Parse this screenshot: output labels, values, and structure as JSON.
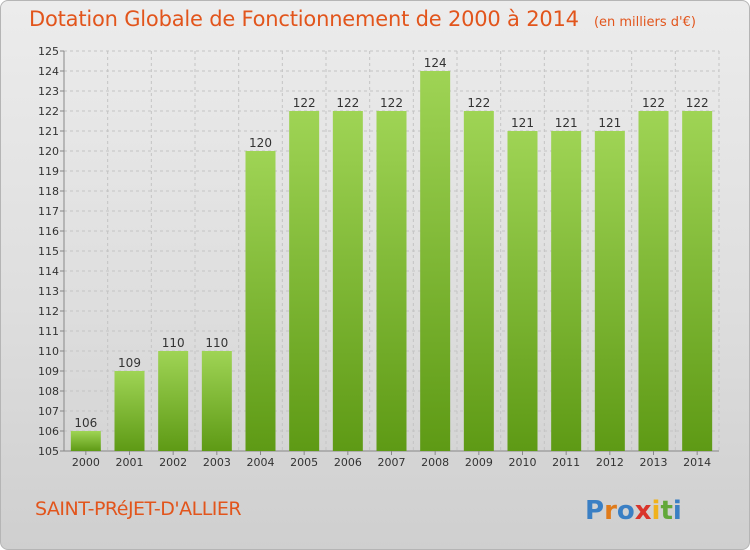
{
  "title": "Dotation Globale de Fonctionnement de 2000 à 2014",
  "unit": "(en milliers d'€)",
  "commune": "SAINT-PRéJET-D'ALLIER",
  "logo_text": "Proxiti",
  "colors": {
    "title": "#e2551c",
    "bar_top": "#9fd455",
    "bar_bottom": "#5e9a15",
    "background_top": "#ececec",
    "background_bottom": "#cfcfcf"
  },
  "chart_data": {
    "type": "bar",
    "categories": [
      "2000",
      "2001",
      "2002",
      "2003",
      "2004",
      "2005",
      "2006",
      "2007",
      "2008",
      "2009",
      "2010",
      "2011",
      "2012",
      "2013",
      "2014"
    ],
    "values": [
      106,
      109,
      110,
      110,
      120,
      122,
      122,
      122,
      124,
      122,
      121,
      121,
      121,
      122,
      122
    ],
    "value_labels": [
      "106",
      "109",
      "110",
      "110",
      "120",
      "122",
      "122",
      "122",
      "124",
      "122",
      "121",
      "121",
      "121",
      "122",
      "122"
    ],
    "ylim": [
      105,
      125
    ],
    "yticks": [
      105,
      106,
      107,
      108,
      109,
      110,
      111,
      112,
      113,
      114,
      115,
      116,
      117,
      118,
      119,
      120,
      121,
      122,
      123,
      124,
      125
    ],
    "ytick_labels": [
      "105",
      "106",
      "107",
      "108",
      "109",
      "110",
      "111",
      "112",
      "113",
      "114",
      "115",
      "116",
      "117",
      "118",
      "119",
      "120",
      "121",
      "122",
      "123",
      "124",
      "125"
    ],
    "grid": true,
    "legend": false
  }
}
